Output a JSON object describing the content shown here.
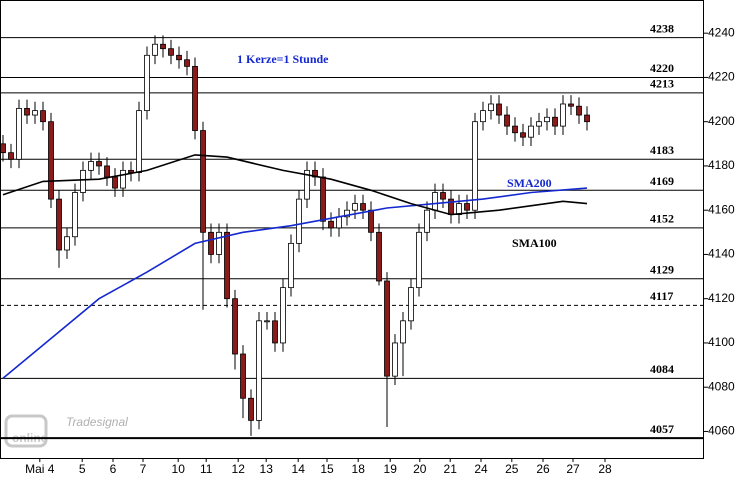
{
  "chart_data": {
    "type": "candlestick",
    "annotation": "1 Kerze=1 Stunde",
    "watermark": [
      "Tradesignal",
      "online"
    ],
    "categories_count_note_free": null,
    "xlim": [
      -0.375,
      87.5
    ],
    "xticks": [
      {
        "value": 4.6,
        "label": "Mai 4"
      },
      {
        "value": 9.9,
        "label": "5"
      },
      {
        "value": 13.75,
        "label": "6"
      },
      {
        "value": 17.5,
        "label": "7"
      },
      {
        "value": 21.9,
        "label": "10"
      },
      {
        "value": 25.4,
        "label": "11"
      },
      {
        "value": 29.4,
        "label": "12"
      },
      {
        "value": 32.9,
        "label": "13"
      },
      {
        "value": 36.9,
        "label": "14"
      },
      {
        "value": 40.5,
        "label": "15"
      },
      {
        "value": 44.4,
        "label": "18"
      },
      {
        "value": 48.4,
        "label": "19"
      },
      {
        "value": 52.1,
        "label": "20"
      },
      {
        "value": 55.9,
        "label": "21"
      },
      {
        "value": 59.75,
        "label": "24"
      },
      {
        "value": 63.6,
        "label": "25"
      },
      {
        "value": 67.5,
        "label": "26"
      },
      {
        "value": 71.25,
        "label": "27"
      },
      {
        "value": 75.25,
        "label": "28"
      }
    ],
    "ylim": [
      4048,
      4255
    ],
    "yticks": [
      4060,
      4080,
      4100,
      4120,
      4140,
      4160,
      4180,
      4200,
      4220,
      4240
    ],
    "up_color": "#ffffff",
    "down_color": "#8b1a1a",
    "open": [
      4190,
      4186,
      4183,
      4206,
      4203,
      4205,
      4200,
      4165,
      4142,
      4148,
      4168,
      4178,
      4182,
      4180,
      4175,
      4170,
      4178,
      4177,
      4205,
      4230,
      4235,
      4233,
      4230,
      4228,
      4225,
      4196,
      4150,
      4140,
      4150,
      4120,
      4095,
      4075,
      4065,
      4110,
      4110,
      4100,
      4125,
      4145,
      4165,
      4178,
      4175,
      4155,
      4152,
      4157,
      4160,
      4163,
      4160,
      4150,
      4128,
      4085,
      4100,
      4110,
      4125,
      4150,
      4160,
      4168,
      4165,
      4158,
      4163,
      4160,
      4200,
      4205,
      4208,
      4203,
      4198,
      4195,
      4193,
      4198,
      4200,
      4202,
      4198,
      4208,
      4207,
      4203
    ],
    "high": [
      4194,
      4190,
      4210,
      4210,
      4209,
      4209,
      4204,
      4169,
      4152,
      4172,
      4182,
      4186,
      4186,
      4184,
      4179,
      4182,
      4182,
      4209,
      4234,
      4239,
      4239,
      4237,
      4234,
      4232,
      4229,
      4200,
      4154,
      4154,
      4154,
      4124,
      4099,
      4079,
      4114,
      4114,
      4114,
      4129,
      4149,
      4169,
      4182,
      4182,
      4179,
      4159,
      4161,
      4164,
      4167,
      4167,
      4164,
      4154,
      4132,
      4104,
      4114,
      4129,
      4154,
      4164,
      4172,
      4172,
      4169,
      4167,
      4167,
      4204,
      4209,
      4212,
      4212,
      4207,
      4202,
      4199,
      4202,
      4204,
      4206,
      4206,
      4212,
      4212,
      4211,
      4207
    ],
    "low": [
      4182,
      4179,
      4179,
      4199,
      4199,
      4196,
      4161,
      4134,
      4138,
      4144,
      4164,
      4174,
      4176,
      4171,
      4166,
      4166,
      4173,
      4173,
      4201,
      4226,
      4229,
      4226,
      4224,
      4221,
      4192,
      4115,
      4136,
      4136,
      4116,
      4088,
      4066,
      4058,
      4061,
      4106,
      4096,
      4096,
      4121,
      4141,
      4161,
      4171,
      4151,
      4148,
      4148,
      4153,
      4156,
      4156,
      4146,
      4126,
      4062,
      4081,
      4085,
      4106,
      4121,
      4146,
      4156,
      4161,
      4154,
      4154,
      4156,
      4156,
      4196,
      4201,
      4199,
      4194,
      4191,
      4189,
      4189,
      4194,
      4196,
      4194,
      4194,
      4203,
      4199,
      4196
    ],
    "close": [
      4186,
      4183,
      4206,
      4203,
      4205,
      4200,
      4165,
      4142,
      4148,
      4168,
      4178,
      4182,
      4180,
      4175,
      4170,
      4178,
      4177,
      4205,
      4230,
      4235,
      4233,
      4230,
      4228,
      4225,
      4196,
      4150,
      4140,
      4150,
      4120,
      4095,
      4075,
      4065,
      4110,
      4110,
      4100,
      4125,
      4145,
      4165,
      4178,
      4175,
      4155,
      4152,
      4157,
      4160,
      4163,
      4160,
      4150,
      4128,
      4085,
      4100,
      4110,
      4125,
      4150,
      4160,
      4168,
      4165,
      4158,
      4163,
      4160,
      4200,
      4205,
      4208,
      4203,
      4198,
      4195,
      4193,
      4198,
      4200,
      4202,
      4198,
      4208,
      4207,
      4203,
      4200
    ],
    "lines": [
      {
        "name": "SMA200",
        "color": "#1428d0",
        "x": [
          0,
          6,
          12,
          18,
          24,
          30,
          36,
          42,
          48,
          54,
          60,
          66,
          73
        ],
        "values": [
          4084,
          4102,
          4120,
          4132,
          4145,
          4150,
          4153,
          4157,
          4161,
          4163,
          4165,
          4168,
          4170
        ]
      },
      {
        "name": "SMA100",
        "color": "#000000",
        "x": [
          0,
          5,
          12,
          18,
          24,
          28,
          35,
          41,
          46,
          51,
          56,
          62,
          70,
          73
        ],
        "values": [
          4167,
          4173,
          4174,
          4178,
          4185,
          4184,
          4178,
          4174,
          4169,
          4163,
          4158,
          4160,
          4164,
          4163
        ]
      }
    ],
    "levels": [
      4238,
      4220,
      4213,
      4183,
      4169,
      4152,
      4129,
      4117,
      4084,
      4057
    ],
    "level_styles": [
      "solid",
      "solid",
      "solid",
      "solid",
      "solid",
      "solid",
      "solid",
      "dashed",
      "solid",
      "thick"
    ]
  }
}
